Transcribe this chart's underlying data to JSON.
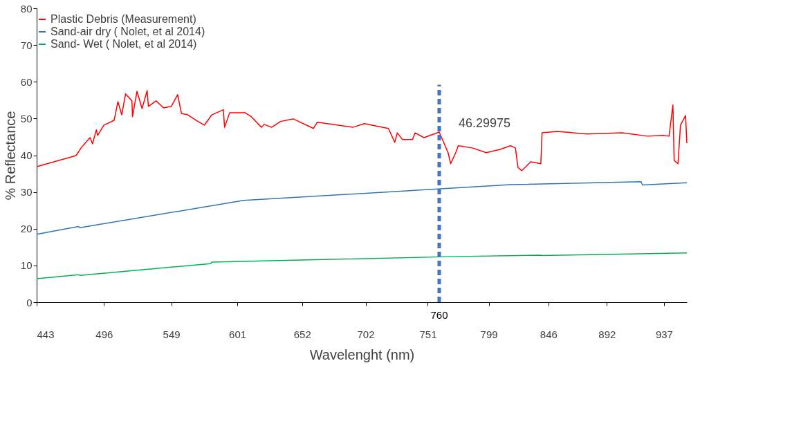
{
  "chart_data": {
    "type": "line",
    "xlabel": "Wavelenght (nm)",
    "ylabel": "% Reflectance",
    "xlim": [
      443,
      955
    ],
    "xticks": [
      443,
      496,
      549,
      601,
      652,
      702,
      751,
      799,
      846,
      892,
      937
    ],
    "ylim": [
      0,
      80
    ],
    "yticks": [
      0,
      10,
      20,
      30,
      40,
      50,
      60,
      70,
      80
    ],
    "grid": false,
    "legend": "top",
    "line_style": "solid",
    "marker": "none",
    "series": [
      {
        "name": "Plastic Debris (Measurement)",
        "color": "#ff0000",
        "x": [
          443,
          474,
          478,
          485,
          487,
          490,
          491,
          496,
          504,
          507,
          510,
          513,
          518,
          518.5,
          522,
          526,
          530,
          531,
          537,
          543,
          549,
          554,
          557,
          562,
          570,
          575,
          581,
          590,
          591,
          595,
          607,
          612,
          620,
          622,
          628,
          635,
          645,
          661,
          664,
          692,
          701,
          720,
          725,
          727,
          731,
          739,
          741,
          748,
          760,
          767,
          769,
          773,
          775,
          786,
          797,
          808,
          816,
          820,
          822,
          825,
          832,
          840,
          841,
          853,
          876,
          904,
          924,
          936,
          941,
          944,
          945,
          948,
          950,
          954,
          955
        ],
        "values": [
          36.9,
          39.9,
          42.0,
          44.8,
          43.1,
          46.9,
          45.4,
          48.2,
          49.5,
          54.6,
          51.0,
          56.7,
          54.8,
          50.5,
          57.4,
          52.7,
          57.6,
          53.3,
          54.8,
          52.9,
          53.3,
          56.5,
          51.4,
          51.0,
          49.2,
          48.2,
          51.0,
          52.4,
          47.6,
          51.6,
          51.6,
          50.5,
          47.6,
          48.4,
          47.6,
          49.2,
          49.9,
          47.3,
          49.0,
          47.6,
          48.6,
          47.3,
          43.5,
          46.1,
          44.3,
          44.3,
          46.1,
          44.8,
          46.3,
          40.7,
          37.7,
          40.7,
          42.6,
          42.0,
          40.7,
          41.6,
          42.6,
          42.0,
          36.7,
          35.8,
          38.2,
          37.7,
          46.1,
          46.5,
          45.8,
          46.1,
          45.2,
          45.4,
          45.2,
          53.7,
          38.6,
          37.7,
          48.2,
          50.8,
          43.3
        ]
      },
      {
        "name": "Sand-air dry ( Nolet, et al 2014)",
        "color": "#2e75b6",
        "x": [
          443,
          476,
          477,
          606,
          768,
          816,
          919,
          920,
          955
        ],
        "values": [
          18.5,
          20.6,
          20.3,
          27.7,
          31.0,
          32.0,
          32.8,
          31.9,
          32.5
        ]
      },
      {
        "name": "Sand- Wet ( Nolet, et al 2014)",
        "color": "#00b050",
        "x": [
          443,
          476,
          477,
          580,
          581,
          768,
          840,
          841,
          955
        ],
        "values": [
          6.4,
          7.5,
          7.3,
          10.5,
          10.9,
          12.4,
          12.8,
          12.7,
          13.4
        ]
      }
    ],
    "ref_lines": [
      {
        "axis": "x",
        "value": 760,
        "label": "760",
        "color": "#4472c4",
        "line_style": "dashed"
      }
    ],
    "annotations": [
      {
        "text": "46.29975",
        "x": 760,
        "y": 46.29975
      }
    ]
  }
}
